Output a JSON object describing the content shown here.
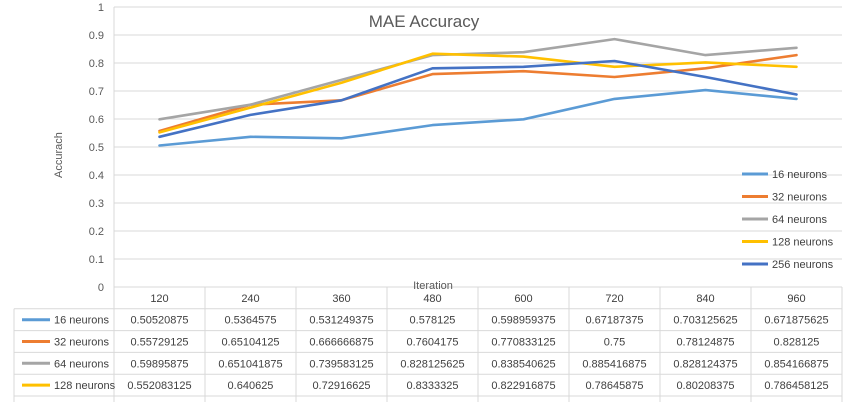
{
  "chart_data": {
    "type": "line",
    "title": "MAE Accuracy",
    "xlabel": "Iteration",
    "ylabel": "Accurach",
    "ylim": [
      0,
      1
    ],
    "yticks": [
      "0",
      "0.1",
      "0.2",
      "0.3",
      "0.4",
      "0.5",
      "0.6",
      "0.7",
      "0.8",
      "0.9",
      "1"
    ],
    "grid": true,
    "legend_position": "right",
    "data_table": true,
    "categories": [
      "120",
      "240",
      "360",
      "480",
      "600",
      "720",
      "840",
      "960"
    ],
    "series": [
      {
        "name": "16 neurons",
        "color": "#5b9bd5",
        "values": [
          0.50520875,
          0.5364575,
          0.531249375,
          0.578125,
          0.598959375,
          0.67187375,
          0.703125625,
          0.671875625
        ],
        "labels": [
          "0.50520875",
          "0.5364575",
          "0.531249375",
          "0.578125",
          "0.598959375",
          "0.67187375",
          "0.703125625",
          "0.671875625"
        ]
      },
      {
        "name": "32 neurons",
        "color": "#ed7d31",
        "values": [
          0.55729125,
          0.65104125,
          0.666666875,
          0.7604175,
          0.770833125,
          0.75,
          0.78124875,
          0.828125
        ],
        "labels": [
          "0.55729125",
          "0.65104125",
          "0.666666875",
          "0.7604175",
          "0.770833125",
          "0.75",
          "0.78124875",
          "0.828125"
        ]
      },
      {
        "name": "64 neurons",
        "color": "#a5a5a5",
        "values": [
          0.59895875,
          0.651041875,
          0.739583125,
          0.828125625,
          0.838540625,
          0.885416875,
          0.828124375,
          0.854166875
        ],
        "labels": [
          "0.59895875",
          "0.651041875",
          "0.739583125",
          "0.828125625",
          "0.838540625",
          "0.885416875",
          "0.828124375",
          "0.854166875"
        ]
      },
      {
        "name": "128 neurons",
        "color": "#ffc000",
        "values": [
          0.552083125,
          0.640625,
          0.72916625,
          0.8333325,
          0.822916875,
          0.78645875,
          0.80208375,
          0.786458125
        ],
        "labels": [
          "0.552083125",
          "0.640625",
          "0.72916625",
          "0.8333325",
          "0.822916875",
          "0.78645875",
          "0.80208375",
          "0.786458125"
        ]
      },
      {
        "name": "256 neurons",
        "color": "#4472c4",
        "values": [
          0.536458125,
          0.614583125,
          0.666665625,
          0.78125,
          0.78645875,
          0.8072925,
          0.75,
          0.6875
        ],
        "labels": [
          "0.536458125",
          "0.614583125",
          "0.666665625",
          "0.78125",
          "0.78645875",
          "0.8072925",
          "0.75",
          "0.6875"
        ]
      }
    ]
  }
}
